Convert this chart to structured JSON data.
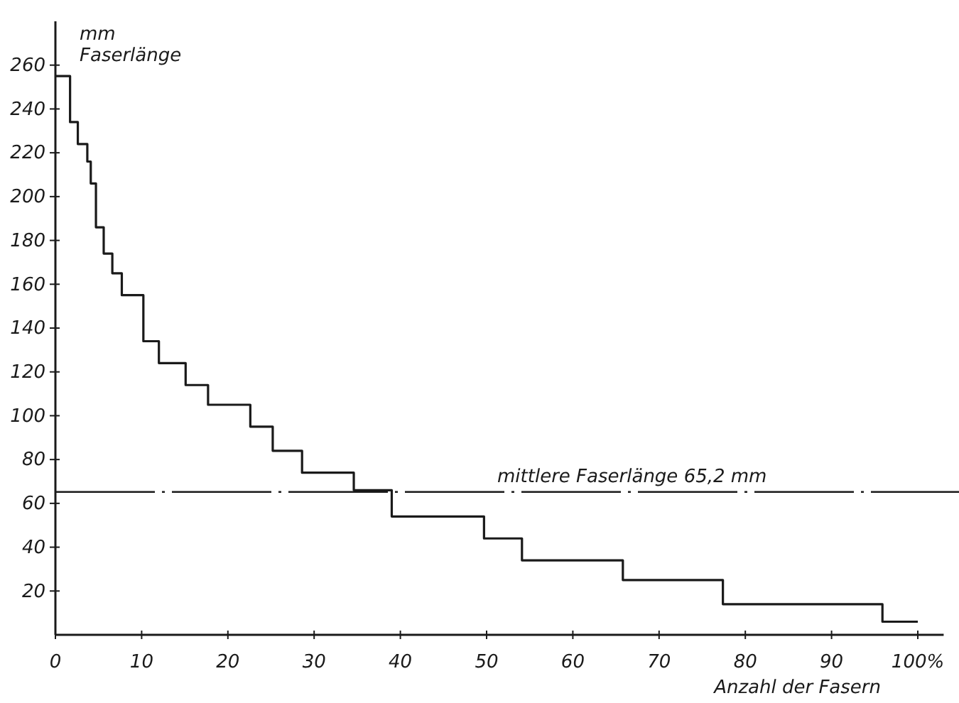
{
  "chart_data": {
    "type": "step",
    "xlabel": "Anzahl der Fasern",
    "ylabel": "mm Faserlänge",
    "x": [
      0,
      1.7,
      2.6,
      3.7,
      4.1,
      4.7,
      5.6,
      6.6,
      7.7,
      10.2,
      12.0,
      15.1,
      17.7,
      22.6,
      25.2,
      28.6,
      34.6,
      39.0,
      49.7,
      54.1,
      65.8,
      77.4,
      95.9,
      100
    ],
    "series": [
      {
        "color": "#1a1a1a",
        "values": [
          255,
          234,
          224,
          216,
          206,
          186,
          174,
          165,
          155,
          134,
          124,
          114,
          105,
          95,
          84,
          74,
          66,
          54,
          44,
          34,
          25,
          14,
          6,
          6
        ]
      }
    ],
    "xlim": [
      0,
      103
    ],
    "ylim": [
      0,
      280
    ],
    "xticks": [
      0,
      10,
      20,
      30,
      40,
      50,
      60,
      70,
      80,
      90,
      {
        "value": 100,
        "label": "100%"
      }
    ],
    "yticks": [
      20,
      40,
      60,
      80,
      100,
      120,
      140,
      160,
      180,
      200,
      220,
      240,
      260
    ],
    "ref_lines": [
      {
        "axis": "y",
        "value": 65.2,
        "label": "mittlere Faserlänge 65,2 mm",
        "color": "#1a1a1a",
        "line_style": "dashdot"
      }
    ],
    "grid": false
  }
}
